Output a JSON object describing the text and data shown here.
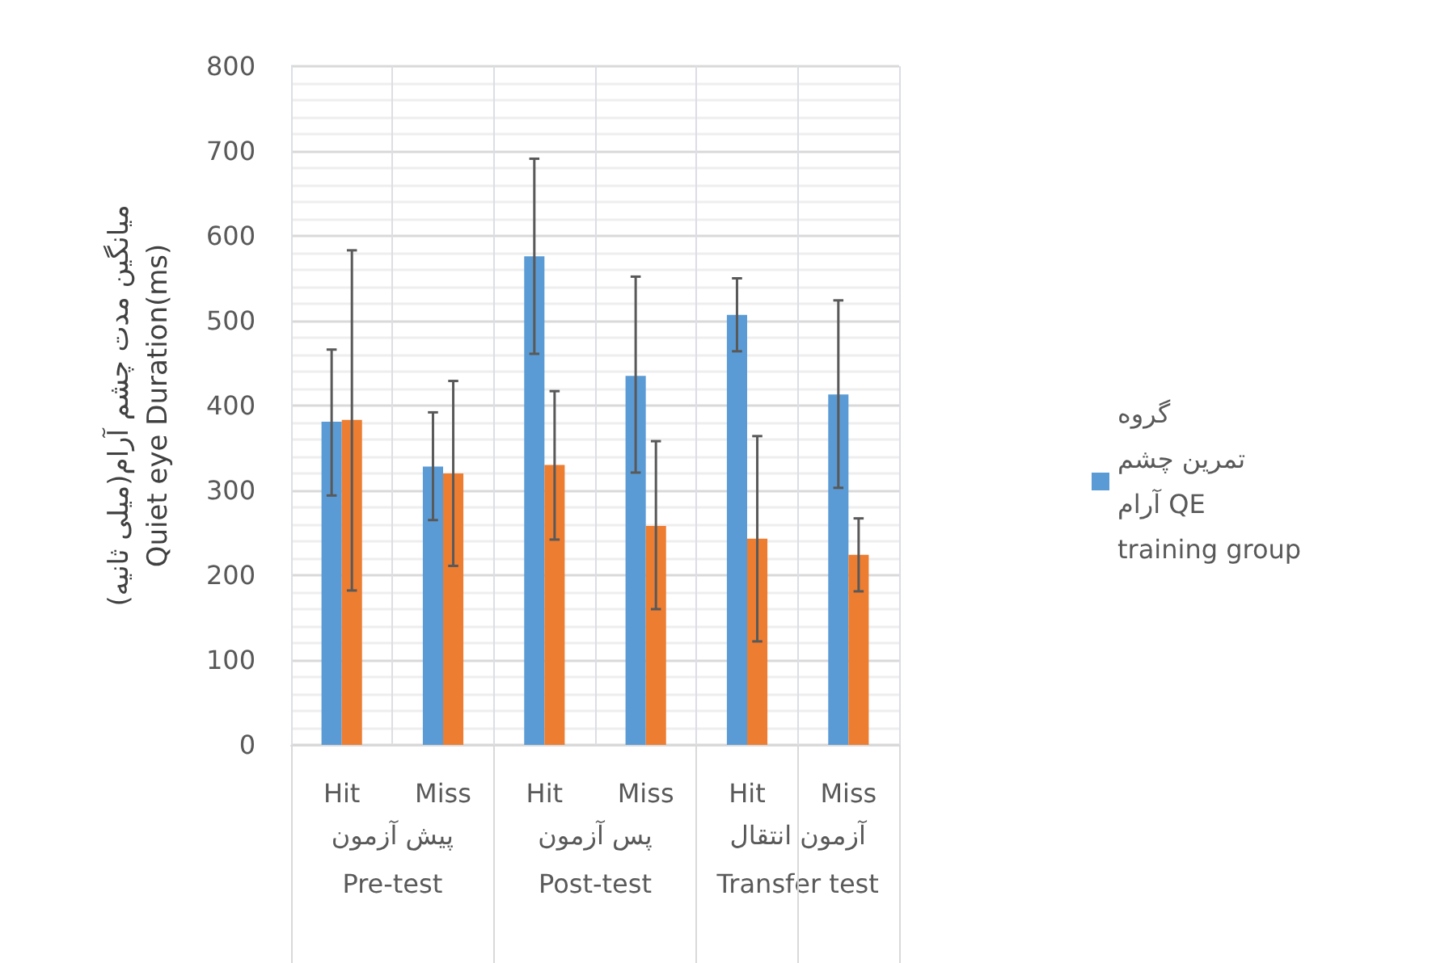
{
  "chart_data": {
    "type": "bar",
    "ylabel": "میانگین مدت چشم آرام(میلی ثانیه)\nQuiet eye Duration(ms)",
    "categories": [
      "Hit",
      "Miss",
      "Hit",
      "Miss",
      "Hit",
      "Miss"
    ],
    "annotations": [
      "پیش آزمون\nPre-test",
      "پس آزمون\nPost-test",
      "آزمون انتقال\nTransfer test"
    ],
    "series": [
      {
        "name": "گروه تمرین چشم آرام QE training group",
        "color": "#5b9bd5",
        "values": [
          381,
          328,
          576,
          435,
          507,
          413
        ],
        "errors": [
          [
            294,
            466
          ],
          [
            265,
            392
          ],
          [
            461,
            691
          ],
          [
            321,
            552
          ],
          [
            464,
            550
          ],
          [
            303,
            524
          ]
        ]
      },
      {
        "color": "#ed7d31",
        "values": [
          383,
          320,
          330,
          258,
          243,
          224
        ],
        "errors": [
          [
            182,
            583
          ],
          [
            211,
            429
          ],
          [
            242,
            417
          ],
          [
            160,
            358
          ],
          [
            122,
            364
          ],
          [
            181,
            267
          ]
        ]
      }
    ],
    "ylim": [
      0,
      800
    ],
    "yticks": [
      0,
      100,
      200,
      300,
      400,
      500,
      600,
      700,
      800
    ],
    "grid": true,
    "legend": "right"
  }
}
